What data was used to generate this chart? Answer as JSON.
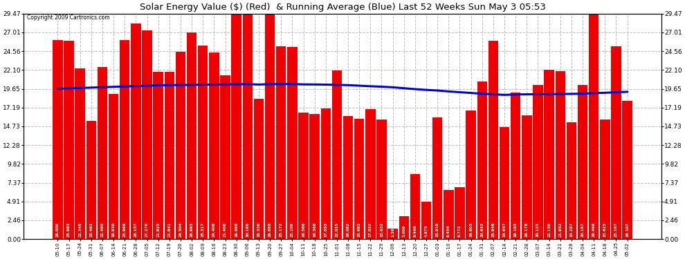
{
  "title": "Solar Energy Value ($) (Red)  & Running Average (Blue) Last 52 Weeks Sun May 3 05:53",
  "copyright": "Copyright 2009 Cartronics.com",
  "bar_color": "#ee0000",
  "line_color": "#0000cc",
  "background_color": "#ffffff",
  "plot_bg_color": "#ffffff",
  "grid_color": "#bbbbbb",
  "categories": [
    "05-10",
    "05-17",
    "05-24",
    "05-31",
    "06-07",
    "06-14",
    "06-21",
    "06-28",
    "07-05",
    "07-12",
    "07-19",
    "07-26",
    "08-02",
    "08-09",
    "08-16",
    "08-23",
    "08-30",
    "09-06",
    "09-13",
    "09-20",
    "09-27",
    "10-04",
    "10-11",
    "10-18",
    "10-25",
    "11-01",
    "11-08",
    "11-15",
    "11-22",
    "11-29",
    "12-06",
    "12-13",
    "12-20",
    "12-27",
    "01-03",
    "01-10",
    "01-17",
    "01-24",
    "01-31",
    "02-07",
    "02-14",
    "02-21",
    "02-28",
    "03-07",
    "03-14",
    "03-21",
    "03-28",
    "04-04",
    "04-11",
    "04-18",
    "04-25",
    "05-02"
  ],
  "values": [
    26.0,
    25.963,
    22.346,
    15.492,
    22.48,
    18.93,
    25.999,
    28.157,
    27.27,
    21.825,
    21.841,
    24.504,
    26.993,
    25.317,
    24.406,
    21.406,
    29.888,
    30.186,
    18.33,
    29.888,
    25.172,
    25.109,
    16.566,
    16.368,
    17.053,
    22.035,
    16.082,
    15.692,
    17.032,
    15.632,
    1.369,
    3.009,
    8.466,
    4.875,
    15.91,
    6.454,
    6.772,
    16.805,
    20.643,
    25.946,
    14.647,
    19.163,
    16.178,
    20.125,
    22.156,
    21.952,
    15.287,
    20.167,
    29.469,
    15.625,
    25.167,
    18.107
  ],
  "running_avg": [
    19.65,
    19.7,
    19.75,
    19.8,
    19.85,
    19.9,
    19.95,
    20.0,
    20.05,
    20.1,
    20.12,
    20.14,
    20.16,
    20.18,
    20.2,
    20.22,
    20.24,
    20.25,
    20.2,
    20.25,
    20.26,
    20.27,
    20.22,
    20.21,
    20.19,
    20.16,
    20.12,
    20.05,
    19.98,
    19.92,
    19.84,
    19.72,
    19.6,
    19.5,
    19.42,
    19.3,
    19.2,
    19.1,
    19.0,
    18.92,
    18.85,
    18.9,
    18.92,
    18.93,
    18.94,
    18.96,
    18.98,
    19.0,
    19.08,
    19.12,
    19.2,
    19.25
  ],
  "yticks": [
    0.0,
    2.46,
    4.91,
    7.37,
    9.82,
    12.28,
    14.73,
    17.19,
    19.65,
    22.1,
    24.56,
    27.01,
    29.47
  ],
  "ylim": [
    0,
    29.47
  ],
  "figsize": [
    9.9,
    3.75
  ],
  "dpi": 100
}
